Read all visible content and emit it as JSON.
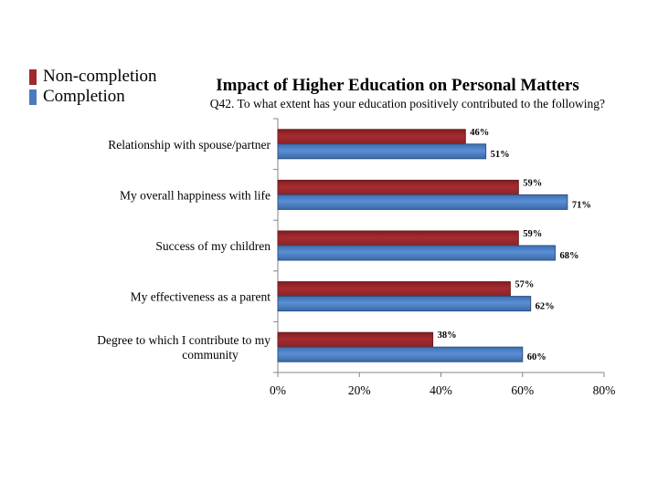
{
  "legend": [
    {
      "name": "Non-completion",
      "color": "#9e2a2f"
    },
    {
      "name": "Completion",
      "color": "#4a7bbf"
    }
  ],
  "chart_data": {
    "type": "bar",
    "orientation": "horizontal",
    "title": "Impact of Higher Education on Personal Matters",
    "subtitle": "Q42. To what extent has your education positively contributed to the following?",
    "categories": [
      [
        "Relationship with spouse/partner"
      ],
      [
        "My overall happiness with life"
      ],
      [
        "Success of my children"
      ],
      [
        "My effectiveness as a parent"
      ],
      [
        "Degree to which I contribute to my",
        "community"
      ]
    ],
    "series": [
      {
        "name": "Non-completion",
        "color": "#9e2a2f",
        "values": [
          46,
          59,
          59,
          57,
          38
        ],
        "labels": [
          "46%",
          "59%",
          "59%",
          "57%",
          "38%"
        ]
      },
      {
        "name": "Completion",
        "color": "#4a7bbf",
        "values": [
          51,
          71,
          68,
          62,
          60
        ],
        "labels": [
          "51%",
          "71%",
          "68%",
          "62%",
          "60%"
        ]
      }
    ],
    "xlim": [
      0,
      80
    ],
    "ticks": [
      0,
      20,
      40,
      60,
      80
    ],
    "tick_labels": [
      "0%",
      "20%",
      "40%",
      "60%",
      "80%"
    ],
    "legend_position": "top-left",
    "grid": false
  }
}
